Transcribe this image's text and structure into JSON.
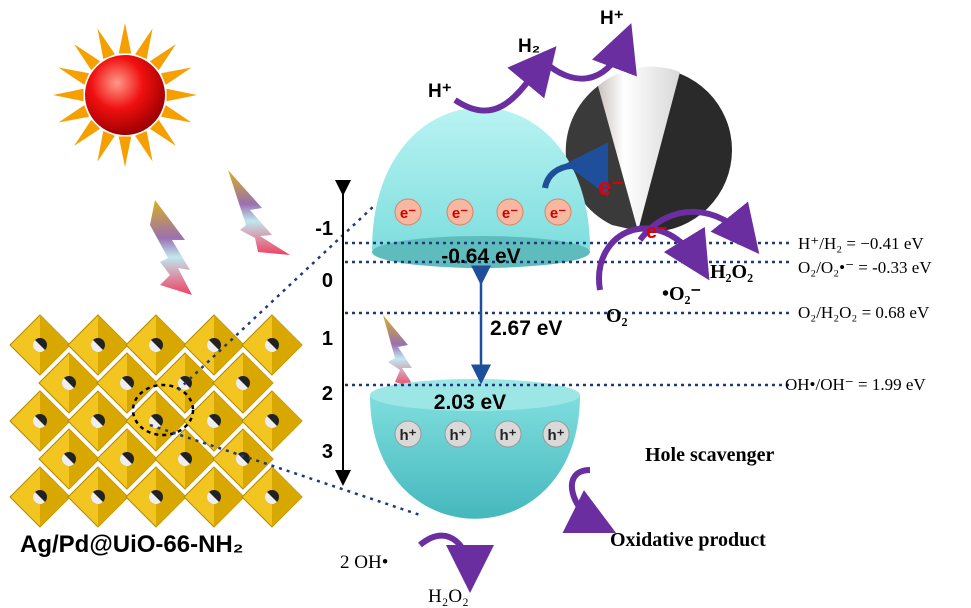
{
  "material_label": "Ag/Pd@UiO-66-NH₂",
  "potential_axis": {
    "ticks": [
      "-1",
      "0",
      "1",
      "2",
      "3"
    ]
  },
  "conduction_band": {
    "edge": "-0.64 eV",
    "electrons": [
      "e⁻",
      "e⁻",
      "e⁻",
      "e⁻"
    ]
  },
  "valence_band": {
    "edge": "2.03 eV",
    "holes": [
      "h⁺",
      "h⁺",
      "h⁺",
      "h⁺"
    ]
  },
  "band_gap": "2.67 eV",
  "reduction": {
    "proton_in": "H⁺",
    "hydrogen": "H₂",
    "proton_out": "H⁺",
    "transfer_electron": "e⁻",
    "oxygen_electron": "e⁻",
    "oxygen": "O₂",
    "superoxide": "•O₂⁻",
    "peroxide": "H₂O₂"
  },
  "potentials": [
    "H⁺/H₂ = −0.41 eV",
    "O₂/O₂•⁻ = -0.33 eV",
    "O₂/H₂O₂ = 0.68 eV",
    "OH•/OH⁻ = 1.99 eV"
  ],
  "oxidation": {
    "scavenger": "Hole scavenger",
    "product": "Oxidative product",
    "hydroxide": "2 OH•",
    "peroxide": "H₂O₂"
  }
}
